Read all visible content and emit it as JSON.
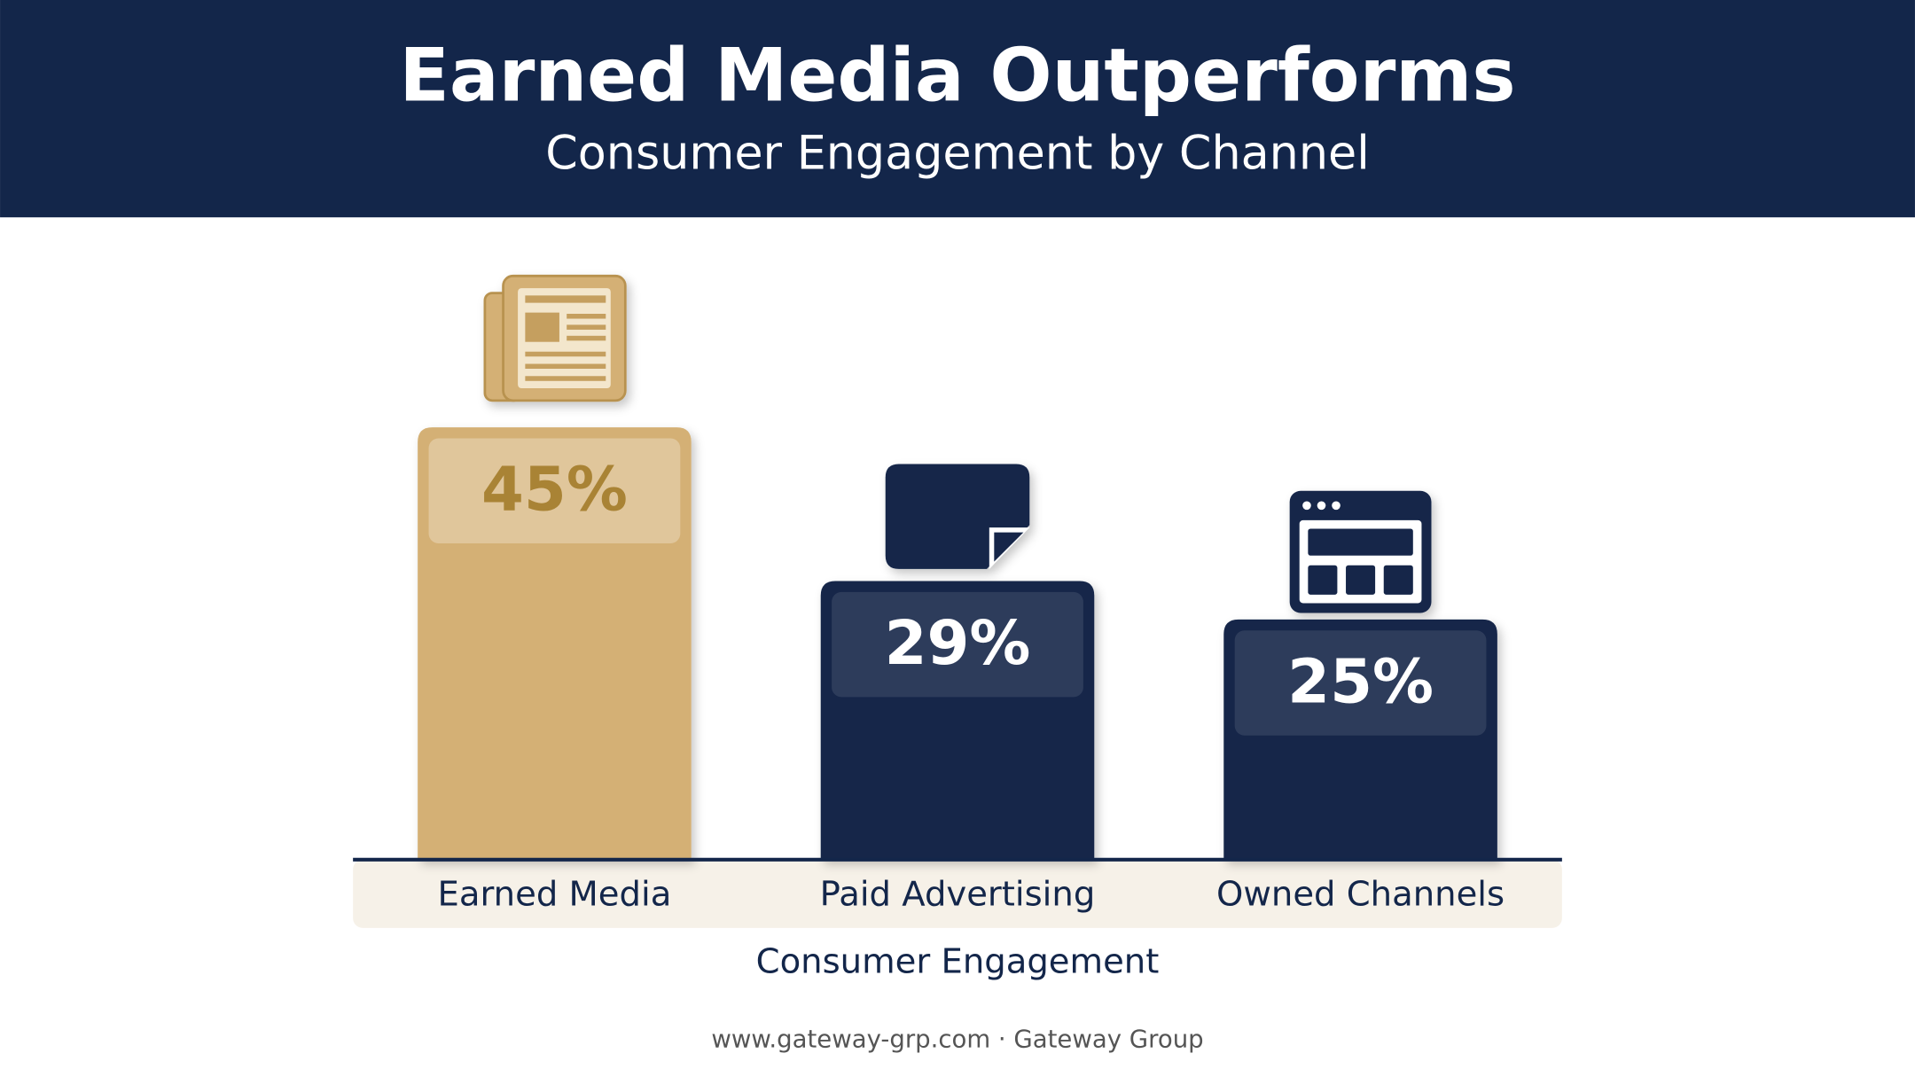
{
  "chart_data": {
    "type": "bar",
    "title": "Earned Media Outperforms",
    "subtitle": "Consumer Engagement by Channel",
    "x_label": "Consumer Engagement",
    "categories": [
      "Earned Media",
      "Paid Advertising",
      "Owned Channels"
    ],
    "values": [
      45,
      29,
      25
    ],
    "value_labels": [
      "45%",
      "29%",
      "25%"
    ],
    "colors": [
      "#d4b074",
      "#13264a",
      "#13264a"
    ],
    "footer": "www.gateway-grp.com · Gateway Group"
  }
}
